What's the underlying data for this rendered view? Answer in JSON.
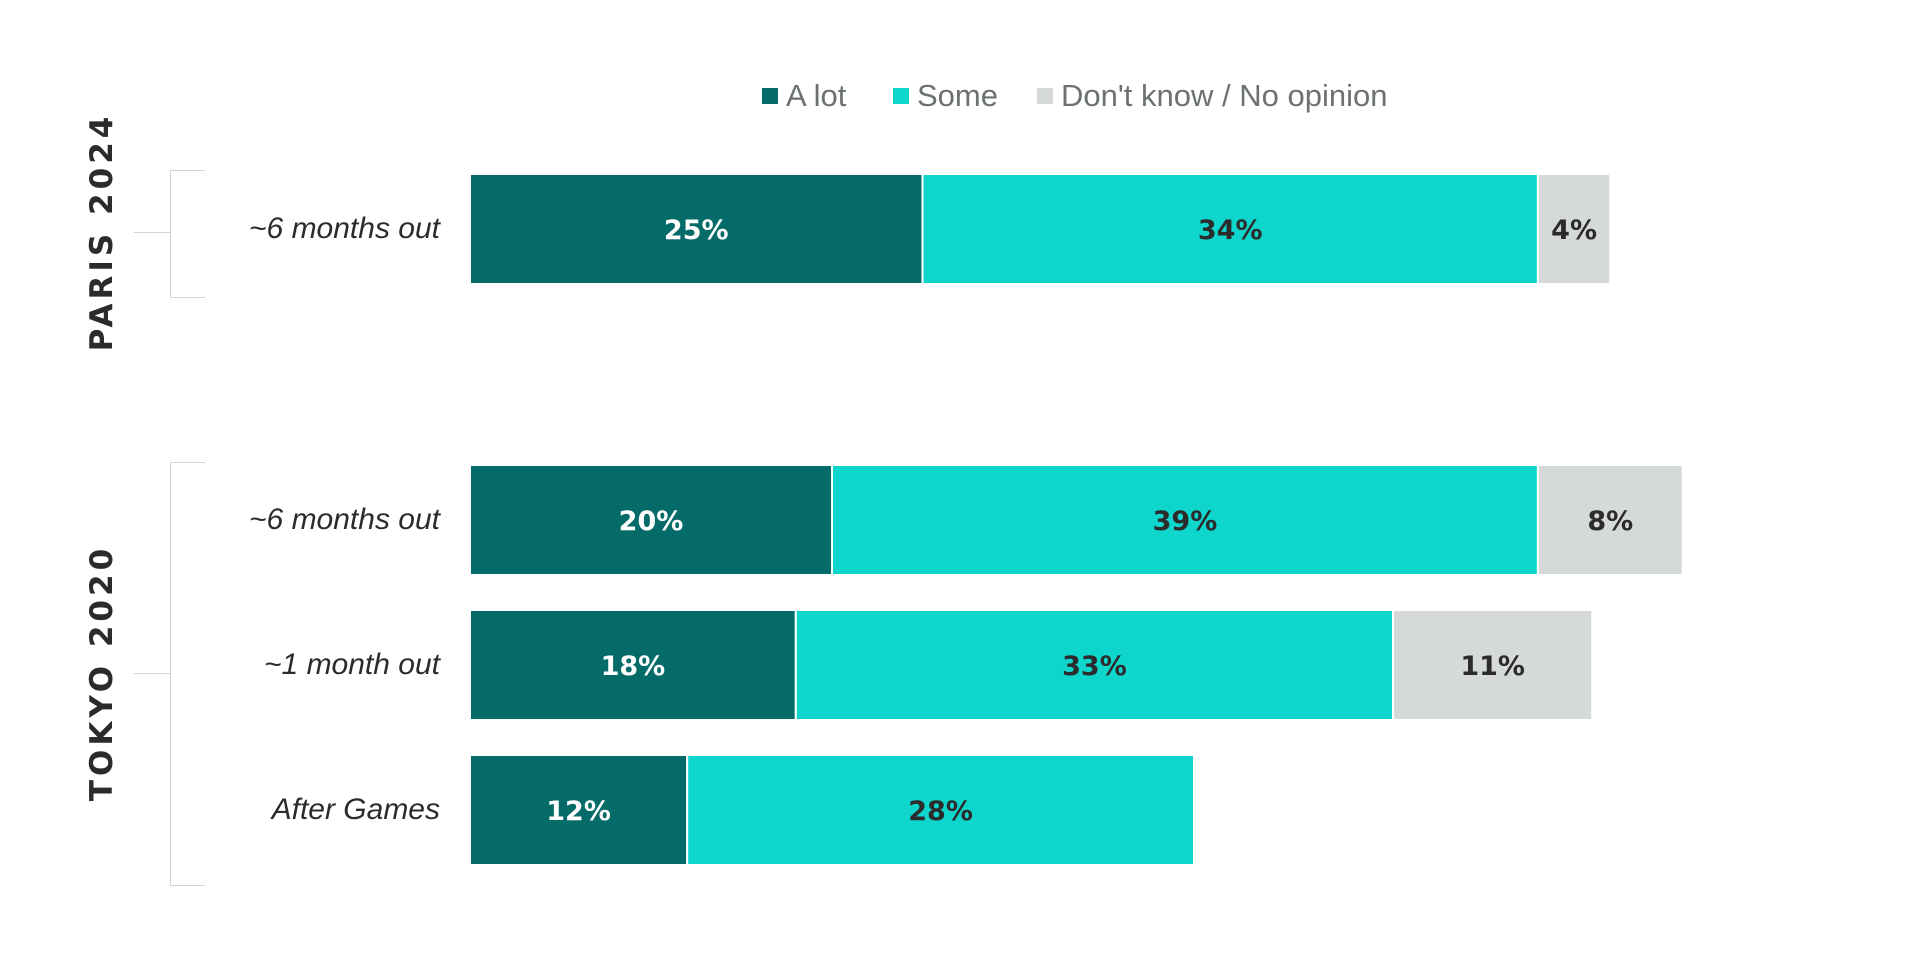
{
  "colors": {
    "a_lot": "#046b69",
    "some": "#0fd6cd",
    "dont_know": "#d6d9d9",
    "label_dark": "#2b2b2b",
    "label_light": "#ffffff"
  },
  "legend": [
    {
      "name": "A lot",
      "color": "#046b69"
    },
    {
      "name": "Some",
      "color": "#0fd6cd"
    },
    {
      "name": "Don't know / No opinion",
      "color": "#d6d9d9"
    }
  ],
  "groups": [
    {
      "name": "PARIS 2024"
    },
    {
      "name": "TOKYO 2020"
    }
  ],
  "chart_data": {
    "type": "bar",
    "orientation": "horizontal",
    "stacked": true,
    "categories": [
      "~6 months out",
      "~6 months out",
      "~1 month out",
      "After Games"
    ],
    "category_groups": [
      "PARIS 2024",
      "TOKYO 2020",
      "TOKYO 2020",
      "TOKYO 2020"
    ],
    "series": [
      {
        "name": "A lot",
        "values": [
          25,
          20,
          18,
          12
        ],
        "labels": [
          "25%",
          "20%",
          "18%",
          "12%"
        ]
      },
      {
        "name": "Some",
        "values": [
          34,
          39,
          33,
          28
        ],
        "labels": [
          "34%",
          "39%",
          "33%",
          "28%"
        ]
      },
      {
        "name": "Don't know / No opinion",
        "values": [
          4,
          8,
          11,
          0
        ],
        "labels": [
          "4%",
          "8%",
          "11%",
          ""
        ]
      }
    ],
    "title": "",
    "xlabel": "",
    "ylabel": "",
    "legend_position": "top",
    "grid": false
  }
}
